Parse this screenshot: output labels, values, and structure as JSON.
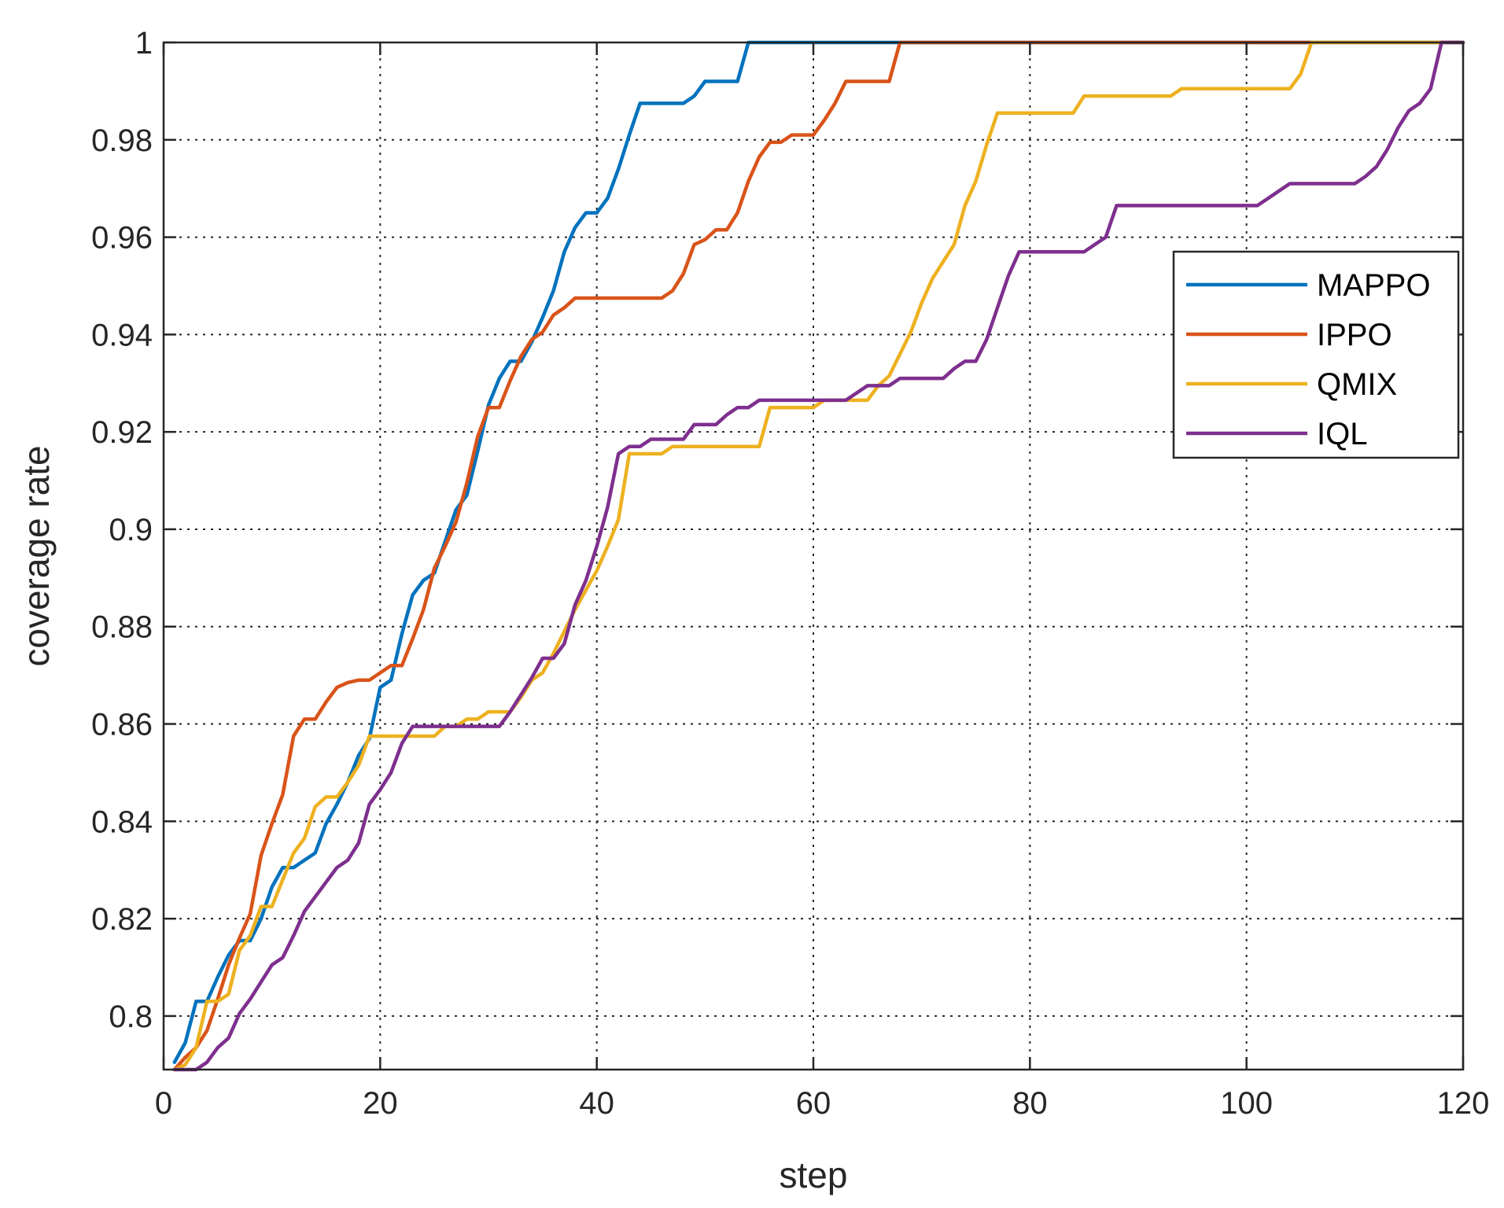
{
  "chart_data": {
    "type": "line",
    "title": "",
    "xlabel": "step",
    "ylabel": "coverage rate",
    "xlim": [
      0,
      120
    ],
    "ylim": [
      0.789,
      1.0
    ],
    "xticks": [
      0,
      20,
      40,
      60,
      80,
      100,
      120
    ],
    "yticks": [
      0.8,
      0.82,
      0.84,
      0.86,
      0.88,
      0.9,
      0.92,
      0.94,
      0.96,
      0.98,
      1
    ],
    "xtick_labels": [
      "0",
      "20",
      "40",
      "60",
      "80",
      "100",
      "120"
    ],
    "ytick_labels": [
      "0.8",
      "0.82",
      "0.84",
      "0.86",
      "0.88",
      "0.9",
      "0.92",
      "0.94",
      "0.96",
      "0.98",
      "1"
    ],
    "grid": true,
    "legend_position": "right",
    "series": [
      {
        "name": "MAPPO",
        "color": "#0072BD",
        "points": [
          [
            1,
            0.7905
          ],
          [
            2,
            0.7945
          ],
          [
            3,
            0.803
          ],
          [
            4,
            0.803
          ],
          [
            5,
            0.808
          ],
          [
            6,
            0.8125
          ],
          [
            7,
            0.8155
          ],
          [
            8,
            0.8155
          ],
          [
            9,
            0.82
          ],
          [
            10,
            0.8265
          ],
          [
            11,
            0.8305
          ],
          [
            12,
            0.8305
          ],
          [
            13,
            0.832
          ],
          [
            14,
            0.8335
          ],
          [
            15,
            0.8395
          ],
          [
            16,
            0.8435
          ],
          [
            17,
            0.848
          ],
          [
            18,
            0.8535
          ],
          [
            19,
            0.857
          ],
          [
            20,
            0.8675
          ],
          [
            21,
            0.869
          ],
          [
            22,
            0.8785
          ],
          [
            23,
            0.8865
          ],
          [
            24,
            0.8895
          ],
          [
            25,
            0.891
          ],
          [
            26,
            0.8975
          ],
          [
            27,
            0.904
          ],
          [
            28,
            0.907
          ],
          [
            29,
            0.916
          ],
          [
            30,
            0.9255
          ],
          [
            31,
            0.931
          ],
          [
            32,
            0.9345
          ],
          [
            33,
            0.9345
          ],
          [
            34,
            0.9385
          ],
          [
            35,
            0.9435
          ],
          [
            36,
            0.949
          ],
          [
            37,
            0.957
          ],
          [
            38,
            0.962
          ],
          [
            39,
            0.965
          ],
          [
            40,
            0.965
          ],
          [
            41,
            0.968
          ],
          [
            42,
            0.974
          ],
          [
            43,
            0.981
          ],
          [
            44,
            0.9875
          ],
          [
            45,
            0.9875
          ],
          [
            46,
            0.9875
          ],
          [
            47,
            0.9875
          ],
          [
            48,
            0.9875
          ],
          [
            49,
            0.989
          ],
          [
            50,
            0.992
          ],
          [
            51,
            0.992
          ],
          [
            52,
            0.992
          ],
          [
            53,
            0.992
          ],
          [
            54,
            1.0
          ],
          [
            60,
            1.0
          ],
          [
            70,
            1.0
          ],
          [
            80,
            1.0
          ],
          [
            90,
            1.0
          ],
          [
            100,
            1.0
          ],
          [
            110,
            1.0
          ],
          [
            120,
            1.0
          ]
        ]
      },
      {
        "name": "IPPO",
        "color": "#D95319",
        "points": [
          [
            1,
            0.789
          ],
          [
            2,
            0.7915
          ],
          [
            3,
            0.7935
          ],
          [
            4,
            0.797
          ],
          [
            5,
            0.8035
          ],
          [
            6,
            0.8105
          ],
          [
            7,
            0.816
          ],
          [
            8,
            0.821
          ],
          [
            9,
            0.833
          ],
          [
            10,
            0.8395
          ],
          [
            11,
            0.8455
          ],
          [
            12,
            0.8575
          ],
          [
            13,
            0.861
          ],
          [
            14,
            0.861
          ],
          [
            15,
            0.8645
          ],
          [
            16,
            0.8675
          ],
          [
            17,
            0.8685
          ],
          [
            18,
            0.869
          ],
          [
            19,
            0.869
          ],
          [
            20,
            0.8705
          ],
          [
            21,
            0.872
          ],
          [
            22,
            0.872
          ],
          [
            23,
            0.8775
          ],
          [
            24,
            0.8835
          ],
          [
            25,
            0.892
          ],
          [
            26,
            0.8965
          ],
          [
            27,
            0.9015
          ],
          [
            28,
            0.9095
          ],
          [
            29,
            0.919
          ],
          [
            30,
            0.925
          ],
          [
            31,
            0.925
          ],
          [
            32,
            0.9305
          ],
          [
            33,
            0.9355
          ],
          [
            34,
            0.939
          ],
          [
            35,
            0.9405
          ],
          [
            36,
            0.944
          ],
          [
            37,
            0.9455
          ],
          [
            38,
            0.9475
          ],
          [
            40,
            0.9475
          ],
          [
            45,
            0.9475
          ],
          [
            46,
            0.9475
          ],
          [
            47,
            0.949
          ],
          [
            48,
            0.9525
          ],
          [
            49,
            0.9585
          ],
          [
            50,
            0.9595
          ],
          [
            51,
            0.9615
          ],
          [
            52,
            0.9615
          ],
          [
            53,
            0.965
          ],
          [
            54,
            0.9715
          ],
          [
            55,
            0.9765
          ],
          [
            56,
            0.9795
          ],
          [
            57,
            0.9795
          ],
          [
            58,
            0.981
          ],
          [
            59,
            0.981
          ],
          [
            60,
            0.981
          ],
          [
            61,
            0.984
          ],
          [
            62,
            0.9875
          ],
          [
            63,
            0.992
          ],
          [
            64,
            0.992
          ],
          [
            65,
            0.992
          ],
          [
            66,
            0.992
          ],
          [
            67,
            0.992
          ],
          [
            68,
            1.0
          ],
          [
            80,
            1.0
          ],
          [
            90,
            1.0
          ],
          [
            100,
            1.0
          ],
          [
            110,
            1.0
          ],
          [
            120,
            1.0
          ]
        ]
      },
      {
        "name": "QMIX",
        "color": "#EDB120",
        "points": [
          [
            1,
            0.789
          ],
          [
            2,
            0.79
          ],
          [
            3,
            0.7935
          ],
          [
            4,
            0.803
          ],
          [
            5,
            0.803
          ],
          [
            6,
            0.8045
          ],
          [
            7,
            0.8135
          ],
          [
            8,
            0.8165
          ],
          [
            9,
            0.8225
          ],
          [
            10,
            0.8225
          ],
          [
            11,
            0.828
          ],
          [
            12,
            0.8335
          ],
          [
            13,
            0.8365
          ],
          [
            14,
            0.843
          ],
          [
            15,
            0.845
          ],
          [
            16,
            0.845
          ],
          [
            17,
            0.848
          ],
          [
            18,
            0.8515
          ],
          [
            19,
            0.8575
          ],
          [
            20,
            0.8575
          ],
          [
            22,
            0.8575
          ],
          [
            24,
            0.8575
          ],
          [
            25,
            0.8575
          ],
          [
            26,
            0.8595
          ],
          [
            27,
            0.8595
          ],
          [
            28,
            0.861
          ],
          [
            29,
            0.861
          ],
          [
            30,
            0.8625
          ],
          [
            31,
            0.8625
          ],
          [
            32,
            0.8625
          ],
          [
            33,
            0.8655
          ],
          [
            34,
            0.869
          ],
          [
            35,
            0.8705
          ],
          [
            36,
            0.8745
          ],
          [
            37,
            0.879
          ],
          [
            38,
            0.8835
          ],
          [
            39,
            0.8875
          ],
          [
            40,
            0.8915
          ],
          [
            41,
            0.8965
          ],
          [
            42,
            0.902
          ],
          [
            43,
            0.9155
          ],
          [
            44,
            0.9155
          ],
          [
            45,
            0.9155
          ],
          [
            46,
            0.9155
          ],
          [
            47,
            0.917
          ],
          [
            48,
            0.917
          ],
          [
            50,
            0.917
          ],
          [
            55,
            0.917
          ],
          [
            56,
            0.925
          ],
          [
            58,
            0.925
          ],
          [
            60,
            0.925
          ],
          [
            61,
            0.9265
          ],
          [
            65,
            0.9265
          ],
          [
            66,
            0.9295
          ],
          [
            67,
            0.9315
          ],
          [
            68,
            0.936
          ],
          [
            69,
            0.9405
          ],
          [
            70,
            0.9465
          ],
          [
            71,
            0.9515
          ],
          [
            72,
            0.955
          ],
          [
            73,
            0.9585
          ],
          [
            74,
            0.9665
          ],
          [
            75,
            0.9715
          ],
          [
            76,
            0.979
          ],
          [
            77,
            0.9855
          ],
          [
            78,
            0.9855
          ],
          [
            80,
            0.9855
          ],
          [
            84,
            0.9855
          ],
          [
            85,
            0.989
          ],
          [
            90,
            0.989
          ],
          [
            93,
            0.989
          ],
          [
            94,
            0.9905
          ],
          [
            100,
            0.9905
          ],
          [
            104,
            0.9905
          ],
          [
            105,
            0.9935
          ],
          [
            106,
            1.0
          ],
          [
            110,
            1.0
          ],
          [
            115,
            1.0
          ],
          [
            120,
            1.0
          ]
        ]
      },
      {
        "name": "IQL",
        "color": "#7E2F8E",
        "points": [
          [
            1,
            0.789
          ],
          [
            2,
            0.789
          ],
          [
            3,
            0.789
          ],
          [
            4,
            0.7905
          ],
          [
            5,
            0.7935
          ],
          [
            6,
            0.7955
          ],
          [
            7,
            0.8005
          ],
          [
            8,
            0.8035
          ],
          [
            9,
            0.807
          ],
          [
            10,
            0.8105
          ],
          [
            11,
            0.812
          ],
          [
            12,
            0.8165
          ],
          [
            13,
            0.8215
          ],
          [
            14,
            0.8245
          ],
          [
            15,
            0.8275
          ],
          [
            16,
            0.8305
          ],
          [
            17,
            0.832
          ],
          [
            18,
            0.8355
          ],
          [
            19,
            0.8435
          ],
          [
            20,
            0.8465
          ],
          [
            21,
            0.85
          ],
          [
            22,
            0.856
          ],
          [
            23,
            0.8595
          ],
          [
            24,
            0.8595
          ],
          [
            25,
            0.8595
          ],
          [
            26,
            0.8595
          ],
          [
            27,
            0.8595
          ],
          [
            28,
            0.8595
          ],
          [
            29,
            0.8595
          ],
          [
            30,
            0.8595
          ],
          [
            31,
            0.8595
          ],
          [
            32,
            0.8625
          ],
          [
            33,
            0.866
          ],
          [
            34,
            0.8695
          ],
          [
            35,
            0.8735
          ],
          [
            36,
            0.8735
          ],
          [
            37,
            0.8765
          ],
          [
            38,
            0.8845
          ],
          [
            39,
            0.8895
          ],
          [
            40,
            0.8965
          ],
          [
            41,
            0.9045
          ],
          [
            42,
            0.9155
          ],
          [
            43,
            0.917
          ],
          [
            44,
            0.917
          ],
          [
            45,
            0.9185
          ],
          [
            46,
            0.9185
          ],
          [
            47,
            0.9185
          ],
          [
            48,
            0.9185
          ],
          [
            49,
            0.9215
          ],
          [
            50,
            0.9215
          ],
          [
            51,
            0.9215
          ],
          [
            52,
            0.9235
          ],
          [
            53,
            0.925
          ],
          [
            54,
            0.925
          ],
          [
            55,
            0.9265
          ],
          [
            56,
            0.9265
          ],
          [
            60,
            0.9265
          ],
          [
            63,
            0.9265
          ],
          [
            64,
            0.928
          ],
          [
            65,
            0.9295
          ],
          [
            66,
            0.9295
          ],
          [
            67,
            0.9295
          ],
          [
            68,
            0.931
          ],
          [
            70,
            0.931
          ],
          [
            72,
            0.931
          ],
          [
            73,
            0.933
          ],
          [
            74,
            0.9345
          ],
          [
            75,
            0.9345
          ],
          [
            76,
            0.939
          ],
          [
            77,
            0.9455
          ],
          [
            78,
            0.952
          ],
          [
            79,
            0.957
          ],
          [
            80,
            0.957
          ],
          [
            82,
            0.957
          ],
          [
            84,
            0.957
          ],
          [
            85,
            0.957
          ],
          [
            86,
            0.9585
          ],
          [
            87,
            0.96
          ],
          [
            88,
            0.9665
          ],
          [
            90,
            0.9665
          ],
          [
            95,
            0.9665
          ],
          [
            101,
            0.9665
          ],
          [
            102,
            0.968
          ],
          [
            103,
            0.9695
          ],
          [
            104,
            0.971
          ],
          [
            105,
            0.971
          ],
          [
            108,
            0.971
          ],
          [
            110,
            0.971
          ],
          [
            111,
            0.9725
          ],
          [
            112,
            0.9745
          ],
          [
            113,
            0.978
          ],
          [
            114,
            0.9825
          ],
          [
            115,
            0.986
          ],
          [
            116,
            0.9875
          ],
          [
            117,
            0.9905
          ],
          [
            118,
            1.0
          ],
          [
            120,
            1.0
          ]
        ]
      }
    ]
  }
}
